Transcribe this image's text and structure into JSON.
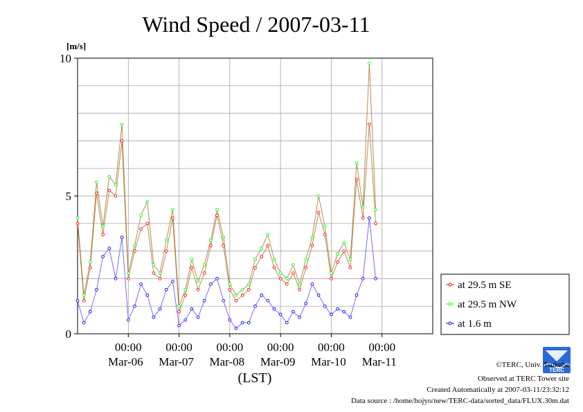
{
  "chart_data": {
    "type": "line",
    "title": "Wind Speed / 2007-03-11",
    "ylabel": "[m/s]",
    "xlabel": "(LST)",
    "ylim": [
      0,
      10
    ],
    "yticks": [
      0,
      5,
      10
    ],
    "xlim": [
      "2007-03-05T00:00",
      "2007-03-12T00:00"
    ],
    "x_tick_labels": [
      {
        "x": "2007-03-06T00:00",
        "time": "00:00",
        "date": "Mar-06"
      },
      {
        "x": "2007-03-07T00:00",
        "time": "00:00",
        "date": "Mar-07"
      },
      {
        "x": "2007-03-08T00:00",
        "time": "00:00",
        "date": "Mar-08"
      },
      {
        "x": "2007-03-09T00:00",
        "time": "00:00",
        "date": "Mar-09"
      },
      {
        "x": "2007-03-10T00:00",
        "time": "00:00",
        "date": "Mar-10"
      },
      {
        "x": "2007-03-11T00:00",
        "time": "00:00",
        "date": "Mar-11"
      }
    ],
    "grid": true,
    "legend_position": "right",
    "series": [
      {
        "name": "at 29.5 m SE",
        "color": "#ff0000",
        "line_color": "#b08040",
        "marker": "open-circle",
        "points": [
          [
            "2007-03-05T00:00",
            4.0
          ],
          [
            "2007-03-05T03:00",
            1.2
          ],
          [
            "2007-03-05T06:00",
            2.4
          ],
          [
            "2007-03-05T09:00",
            5.1
          ],
          [
            "2007-03-05T12:00",
            3.6
          ],
          [
            "2007-03-05T15:00",
            5.2
          ],
          [
            "2007-03-05T18:00",
            5.0
          ],
          [
            "2007-03-05T21:00",
            7.0
          ],
          [
            "2007-03-06T00:00",
            2.0
          ],
          [
            "2007-03-06T03:00",
            3.0
          ],
          [
            "2007-03-06T06:00",
            3.8
          ],
          [
            "2007-03-06T09:00",
            4.0
          ],
          [
            "2007-03-06T12:00",
            2.2
          ],
          [
            "2007-03-06T15:00",
            2.0
          ],
          [
            "2007-03-06T18:00",
            3.0
          ],
          [
            "2007-03-06T21:00",
            4.2
          ],
          [
            "2007-03-07T00:00",
            0.8
          ],
          [
            "2007-03-07T03:00",
            1.4
          ],
          [
            "2007-03-07T06:00",
            2.4
          ],
          [
            "2007-03-07T09:00",
            1.6
          ],
          [
            "2007-03-07T12:00",
            2.2
          ],
          [
            "2007-03-07T15:00",
            3.2
          ],
          [
            "2007-03-07T18:00",
            4.3
          ],
          [
            "2007-03-07T21:00",
            3.2
          ],
          [
            "2007-03-08T00:00",
            1.6
          ],
          [
            "2007-03-08T03:00",
            1.2
          ],
          [
            "2007-03-08T06:00",
            1.4
          ],
          [
            "2007-03-08T09:00",
            1.6
          ],
          [
            "2007-03-08T12:00",
            2.4
          ],
          [
            "2007-03-08T15:00",
            2.8
          ],
          [
            "2007-03-08T18:00",
            3.2
          ],
          [
            "2007-03-08T21:00",
            2.4
          ],
          [
            "2007-03-09T00:00",
            2.0
          ],
          [
            "2007-03-09T03:00",
            1.8
          ],
          [
            "2007-03-09T06:00",
            2.2
          ],
          [
            "2007-03-09T09:00",
            1.6
          ],
          [
            "2007-03-09T12:00",
            2.4
          ],
          [
            "2007-03-09T15:00",
            3.2
          ],
          [
            "2007-03-09T18:00",
            4.4
          ],
          [
            "2007-03-09T21:00",
            3.6
          ],
          [
            "2007-03-10T00:00",
            2.0
          ],
          [
            "2007-03-10T03:00",
            2.6
          ],
          [
            "2007-03-10T06:00",
            3.0
          ],
          [
            "2007-03-10T09:00",
            2.4
          ],
          [
            "2007-03-10T12:00",
            5.6
          ],
          [
            "2007-03-10T15:00",
            4.2
          ],
          [
            "2007-03-10T18:00",
            7.6
          ],
          [
            "2007-03-10T21:00",
            4.0
          ]
        ]
      },
      {
        "name": "at 29.5 m NW",
        "color": "#00ff00",
        "line_color": "#b08040",
        "marker": "open-circle",
        "points": [
          [
            "2007-03-05T00:00",
            4.2
          ],
          [
            "2007-03-05T03:00",
            1.4
          ],
          [
            "2007-03-05T06:00",
            2.6
          ],
          [
            "2007-03-05T09:00",
            5.5
          ],
          [
            "2007-03-05T12:00",
            3.9
          ],
          [
            "2007-03-05T15:00",
            5.7
          ],
          [
            "2007-03-05T18:00",
            5.4
          ],
          [
            "2007-03-05T21:00",
            7.6
          ],
          [
            "2007-03-06T00:00",
            2.2
          ],
          [
            "2007-03-06T03:00",
            3.2
          ],
          [
            "2007-03-06T06:00",
            4.3
          ],
          [
            "2007-03-06T09:00",
            4.8
          ],
          [
            "2007-03-06T12:00",
            2.5
          ],
          [
            "2007-03-06T15:00",
            2.2
          ],
          [
            "2007-03-06T18:00",
            3.4
          ],
          [
            "2007-03-06T21:00",
            4.5
          ],
          [
            "2007-03-07T00:00",
            1.0
          ],
          [
            "2007-03-07T03:00",
            1.6
          ],
          [
            "2007-03-07T06:00",
            2.7
          ],
          [
            "2007-03-07T09:00",
            1.9
          ],
          [
            "2007-03-07T12:00",
            2.5
          ],
          [
            "2007-03-07T15:00",
            3.4
          ],
          [
            "2007-03-07T18:00",
            4.5
          ],
          [
            "2007-03-07T21:00",
            3.5
          ],
          [
            "2007-03-08T00:00",
            1.8
          ],
          [
            "2007-03-08T03:00",
            1.4
          ],
          [
            "2007-03-08T06:00",
            1.6
          ],
          [
            "2007-03-08T09:00",
            1.8
          ],
          [
            "2007-03-08T12:00",
            2.7
          ],
          [
            "2007-03-08T15:00",
            3.1
          ],
          [
            "2007-03-08T18:00",
            3.6
          ],
          [
            "2007-03-08T21:00",
            2.7
          ],
          [
            "2007-03-09T00:00",
            2.2
          ],
          [
            "2007-03-09T03:00",
            2.0
          ],
          [
            "2007-03-09T06:00",
            2.5
          ],
          [
            "2007-03-09T09:00",
            1.8
          ],
          [
            "2007-03-09T12:00",
            2.7
          ],
          [
            "2007-03-09T15:00",
            3.5
          ],
          [
            "2007-03-09T18:00",
            5.0
          ],
          [
            "2007-03-09T21:00",
            3.9
          ],
          [
            "2007-03-10T00:00",
            2.2
          ],
          [
            "2007-03-10T03:00",
            2.9
          ],
          [
            "2007-03-10T06:00",
            3.3
          ],
          [
            "2007-03-10T09:00",
            2.7
          ],
          [
            "2007-03-10T12:00",
            6.2
          ],
          [
            "2007-03-10T15:00",
            4.6
          ],
          [
            "2007-03-10T18:00",
            9.8
          ],
          [
            "2007-03-10T21:00",
            4.5
          ]
        ]
      },
      {
        "name": "at 1.6 m",
        "color": "#0000ff",
        "line_color": "#6060ff",
        "marker": "open-circle",
        "points": [
          [
            "2007-03-05T00:00",
            1.2
          ],
          [
            "2007-03-05T03:00",
            0.4
          ],
          [
            "2007-03-05T06:00",
            0.8
          ],
          [
            "2007-03-05T09:00",
            1.6
          ],
          [
            "2007-03-05T12:00",
            2.8
          ],
          [
            "2007-03-05T15:00",
            3.1
          ],
          [
            "2007-03-05T18:00",
            2.0
          ],
          [
            "2007-03-05T21:00",
            3.5
          ],
          [
            "2007-03-06T00:00",
            0.5
          ],
          [
            "2007-03-06T03:00",
            1.0
          ],
          [
            "2007-03-06T06:00",
            1.8
          ],
          [
            "2007-03-06T09:00",
            1.4
          ],
          [
            "2007-03-06T12:00",
            0.6
          ],
          [
            "2007-03-06T15:00",
            0.9
          ],
          [
            "2007-03-06T18:00",
            1.6
          ],
          [
            "2007-03-06T21:00",
            1.9
          ],
          [
            "2007-03-07T00:00",
            0.3
          ],
          [
            "2007-03-07T03:00",
            0.5
          ],
          [
            "2007-03-07T06:00",
            0.9
          ],
          [
            "2007-03-07T09:00",
            0.6
          ],
          [
            "2007-03-07T12:00",
            1.2
          ],
          [
            "2007-03-07T15:00",
            1.8
          ],
          [
            "2007-03-07T18:00",
            2.0
          ],
          [
            "2007-03-07T21:00",
            1.2
          ],
          [
            "2007-03-08T00:00",
            0.5
          ],
          [
            "2007-03-08T03:00",
            0.2
          ],
          [
            "2007-03-08T06:00",
            0.4
          ],
          [
            "2007-03-08T09:00",
            0.4
          ],
          [
            "2007-03-08T12:00",
            1.0
          ],
          [
            "2007-03-08T15:00",
            1.4
          ],
          [
            "2007-03-08T18:00",
            1.2
          ],
          [
            "2007-03-08T21:00",
            0.9
          ],
          [
            "2007-03-09T00:00",
            0.7
          ],
          [
            "2007-03-09T03:00",
            0.4
          ],
          [
            "2007-03-09T06:00",
            0.8
          ],
          [
            "2007-03-09T09:00",
            0.6
          ],
          [
            "2007-03-09T12:00",
            1.1
          ],
          [
            "2007-03-09T15:00",
            1.8
          ],
          [
            "2007-03-09T18:00",
            1.4
          ],
          [
            "2007-03-09T21:00",
            1.0
          ],
          [
            "2007-03-10T00:00",
            0.7
          ],
          [
            "2007-03-10T03:00",
            0.9
          ],
          [
            "2007-03-10T06:00",
            0.8
          ],
          [
            "2007-03-10T09:00",
            0.6
          ],
          [
            "2007-03-10T12:00",
            1.4
          ],
          [
            "2007-03-10T15:00",
            2.0
          ],
          [
            "2007-03-10T18:00",
            4.2
          ],
          [
            "2007-03-10T21:00",
            2.0
          ]
        ]
      }
    ]
  },
  "footer": {
    "copyright": "©TERC, Univ. Tsukuba",
    "observed": "Observed at TERC Tower site",
    "created": "Created Automatically at 2007-03-11/23:32:12",
    "source": "Data source : /home/hojyo/new/TERC-data/sorted_data/FLUX.30m.dat"
  },
  "logo": {
    "text": "TERC",
    "color": "#2a6ad8"
  }
}
